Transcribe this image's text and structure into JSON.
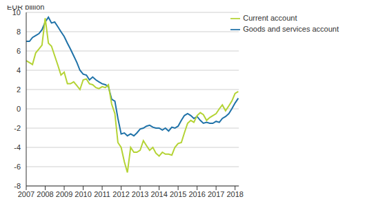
{
  "chart_data": {
    "type": "line",
    "y_label": "EUR billion",
    "x": [
      2007,
      2007.17,
      2007.33,
      2007.5,
      2007.67,
      2007.83,
      2008,
      2008.17,
      2008.33,
      2008.5,
      2008.67,
      2008.83,
      2009,
      2009.17,
      2009.33,
      2009.5,
      2009.67,
      2009.83,
      2010,
      2010.17,
      2010.33,
      2010.5,
      2010.67,
      2010.83,
      2011,
      2011.17,
      2011.33,
      2011.5,
      2011.67,
      2011.83,
      2012,
      2012.17,
      2012.33,
      2012.5,
      2012.67,
      2012.83,
      2013,
      2013.17,
      2013.33,
      2013.5,
      2013.67,
      2013.83,
      2014,
      2014.17,
      2014.33,
      2014.5,
      2014.67,
      2014.83,
      2015,
      2015.17,
      2015.33,
      2015.5,
      2015.67,
      2015.83,
      2016,
      2016.17,
      2016.33,
      2016.5,
      2016.67,
      2016.83,
      2017,
      2017.17,
      2017.33,
      2017.5,
      2017.67,
      2017.83,
      2018,
      2018.17
    ],
    "series": [
      {
        "name": "Goods and services account",
        "color": "#1f72a8",
        "values": [
          7.0,
          7.0,
          7.4,
          7.6,
          7.8,
          8.2,
          9.0,
          9.5,
          8.9,
          9.0,
          8.5,
          8.0,
          7.5,
          6.8,
          6.2,
          5.5,
          4.8,
          4.0,
          3.6,
          3.5,
          3.0,
          3.3,
          3.0,
          2.8,
          2.6,
          2.5,
          2.3,
          1.0,
          0.8,
          -1.0,
          -2.6,
          -2.5,
          -2.8,
          -2.6,
          -2.8,
          -2.5,
          -2.1,
          -2.0,
          -1.8,
          -1.7,
          -1.9,
          -2.0,
          -2.0,
          -2.2,
          -2.0,
          -2.3,
          -1.9,
          -2.0,
          -1.8,
          -1.2,
          -0.7,
          -0.5,
          -0.7,
          -1.0,
          -0.8,
          -1.2,
          -1.5,
          -1.4,
          -1.5,
          -1.5,
          -1.3,
          -1.4,
          -1.0,
          -0.8,
          -0.5,
          0.0,
          0.6,
          1.1
        ]
      },
      {
        "name": "Current account",
        "color": "#b4d334",
        "values": [
          5.0,
          4.8,
          4.6,
          5.8,
          6.2,
          6.6,
          9.4,
          6.8,
          6.5,
          5.5,
          4.5,
          3.5,
          3.8,
          2.6,
          2.6,
          2.8,
          2.4,
          2.0,
          3.0,
          3.1,
          2.6,
          2.5,
          2.2,
          2.1,
          2.3,
          2.2,
          2.5,
          0.5,
          -0.5,
          -3.5,
          -4.0,
          -5.5,
          -6.6,
          -4.0,
          -4.5,
          -4.5,
          -4.3,
          -3.3,
          -3.8,
          -4.3,
          -4.0,
          -4.6,
          -4.9,
          -4.5,
          -4.7,
          -4.7,
          -4.8,
          -4.0,
          -3.6,
          -3.5,
          -2.5,
          -1.5,
          -1.2,
          -1.4,
          -0.7,
          -0.4,
          -0.6,
          -1.2,
          -0.9,
          -0.7,
          -0.5,
          0.0,
          0.4,
          -0.2,
          0.3,
          0.8,
          1.6,
          1.8
        ]
      }
    ],
    "xlim": [
      2007,
      2018.2
    ],
    "xticks": [
      2007,
      2008,
      2009,
      2010,
      2011,
      2012,
      2013,
      2014,
      2015,
      2016,
      2017,
      2018
    ],
    "ylim": [
      -8,
      10
    ],
    "yticks": [
      -8,
      -6,
      -4,
      -2,
      0,
      2,
      4,
      6,
      8,
      10
    ],
    "grid": true,
    "legend": "top-right"
  }
}
